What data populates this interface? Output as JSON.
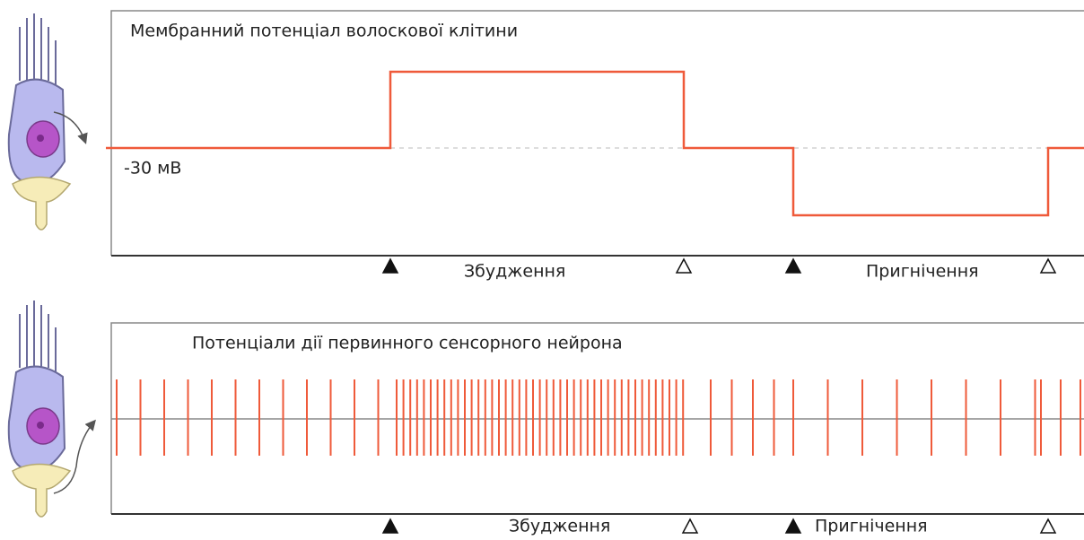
{
  "panels": [
    {
      "title": "Мембранний потенціал волоскової клітини",
      "level_label": "-30 мВ",
      "phases": [
        "Збудження",
        "Пригнічення"
      ]
    },
    {
      "title": "Потенціали дії первинного сенсорного нейрона",
      "phases": [
        "Збудження",
        "Пригнічення"
      ]
    }
  ]
}
